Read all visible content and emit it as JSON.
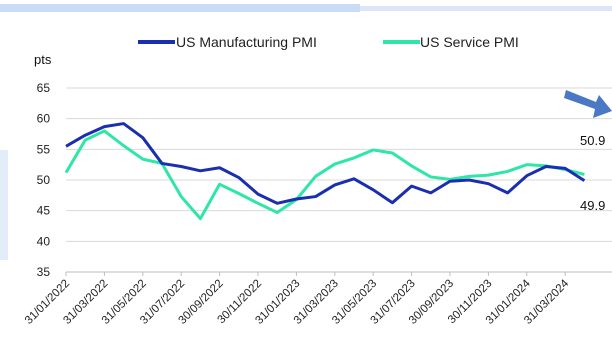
{
  "chart_data": {
    "type": "line",
    "ylabel": "pts",
    "ylim": [
      35,
      65
    ],
    "yticks": [
      35,
      40,
      45,
      50,
      55,
      60,
      65
    ],
    "grid": true,
    "legend_position": "top",
    "x": [
      "31/01/2022",
      "28/02/2022",
      "31/03/2022",
      "30/04/2022",
      "31/05/2022",
      "30/06/2022",
      "31/07/2022",
      "31/08/2022",
      "30/09/2022",
      "31/10/2022",
      "30/11/2022",
      "31/12/2022",
      "31/01/2023",
      "28/02/2023",
      "31/03/2023",
      "30/04/2023",
      "31/05/2023",
      "30/06/2023",
      "31/07/2023",
      "31/08/2023",
      "30/09/2023",
      "31/10/2023",
      "30/11/2023",
      "31/12/2023",
      "31/01/2024",
      "29/02/2024",
      "31/03/2024",
      "30/04/2024"
    ],
    "xtick_labels": [
      "31/01/2022",
      "31/03/2022",
      "31/05/2022",
      "31/07/2022",
      "30/09/2022",
      "30/11/2022",
      "31/01/2023",
      "31/03/2023",
      "31/05/2023",
      "31/07/2023",
      "30/09/2023",
      "30/11/2023",
      "31/01/2024",
      "31/03/2024"
    ],
    "series": [
      {
        "name": "US Manufacturing PMI",
        "color": "#1a2fb0",
        "values": [
          55.5,
          57.3,
          58.7,
          59.2,
          56.9,
          52.7,
          52.2,
          51.5,
          52.0,
          50.4,
          47.7,
          46.2,
          46.9,
          47.3,
          49.2,
          50.2,
          48.4,
          46.3,
          49.0,
          47.9,
          49.8,
          50.0,
          49.4,
          47.9,
          50.7,
          52.2,
          51.9,
          49.9
        ]
      },
      {
        "name": "US Service PMI",
        "color": "#2ee6a6",
        "values": [
          51.2,
          56.5,
          58.0,
          55.6,
          53.4,
          52.7,
          47.3,
          43.7,
          49.3,
          47.8,
          46.2,
          44.7,
          46.8,
          50.6,
          52.6,
          53.6,
          54.9,
          54.4,
          52.3,
          50.5,
          50.1,
          50.6,
          50.8,
          51.4,
          52.5,
          52.3,
          51.7,
          50.9
        ]
      }
    ],
    "annotations": [
      "50.9",
      "49.9"
    ]
  },
  "decor": {
    "arrow_icon_color": "#4a78c4",
    "grid_color": "#d9d9d9"
  }
}
